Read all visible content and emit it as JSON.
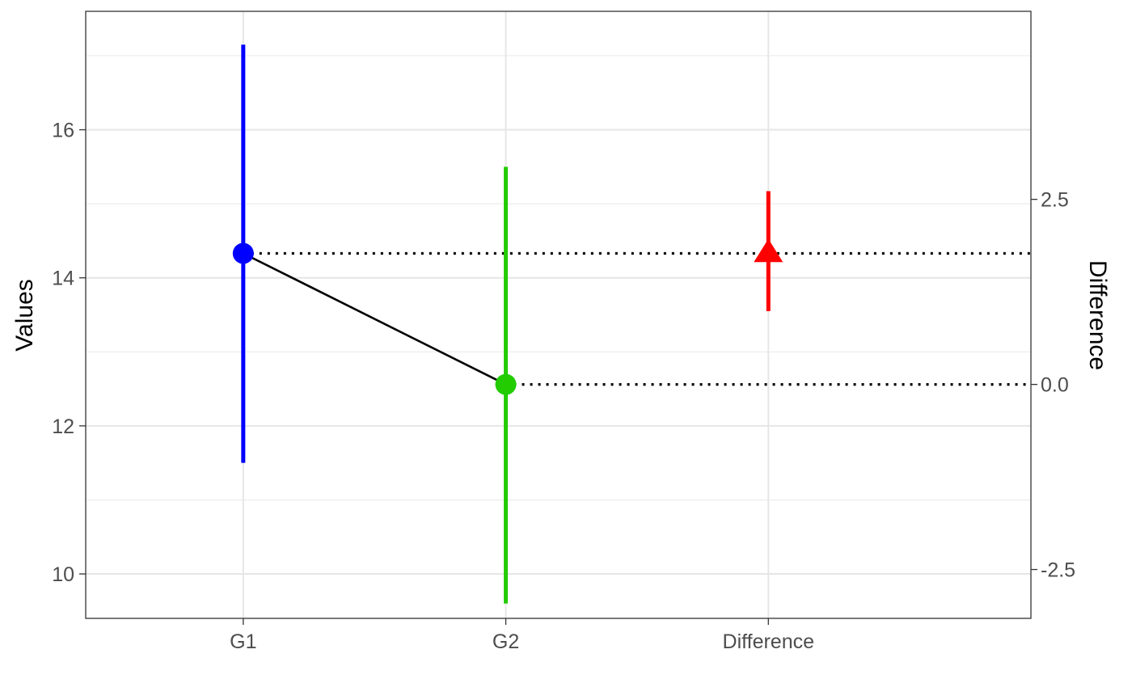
{
  "chart_data": {
    "type": "scatter",
    "subtype": "estimation-plot-with-error-bars",
    "title": "",
    "xlabel": "",
    "ylabel": "Values",
    "y2label": "Difference",
    "categories": [
      "G1",
      "G2",
      "Difference"
    ],
    "ylim": [
      9.4,
      17.6
    ],
    "y_ticks": [
      10,
      12,
      14,
      16
    ],
    "y2_ticks": [
      -2.5,
      0.0,
      2.5
    ],
    "y2_tick_labels": [
      "-2.5",
      "0.0",
      "2.5"
    ],
    "y2_zero_at_primary": 12.56,
    "grid": true,
    "legend": "none",
    "groups": [
      {
        "category": "G1",
        "mean": 14.33,
        "lower": 11.5,
        "upper": 17.15,
        "color": "#0000FF",
        "marker": "circle"
      },
      {
        "category": "G2",
        "mean": 12.56,
        "lower": 9.6,
        "upper": 15.5,
        "color": "#22CC00",
        "marker": "circle"
      }
    ],
    "difference": {
      "category": "Difference",
      "value": 1.77,
      "lower": 0.99,
      "upper": 2.61,
      "color": "#FF0000",
      "marker": "triangle"
    },
    "connector_color": "#000000",
    "reference_lines": [
      {
        "style": "dotted",
        "from_category": "G1",
        "level": 14.33
      },
      {
        "style": "dotted",
        "from_category": "G2",
        "level": 12.56
      }
    ]
  }
}
